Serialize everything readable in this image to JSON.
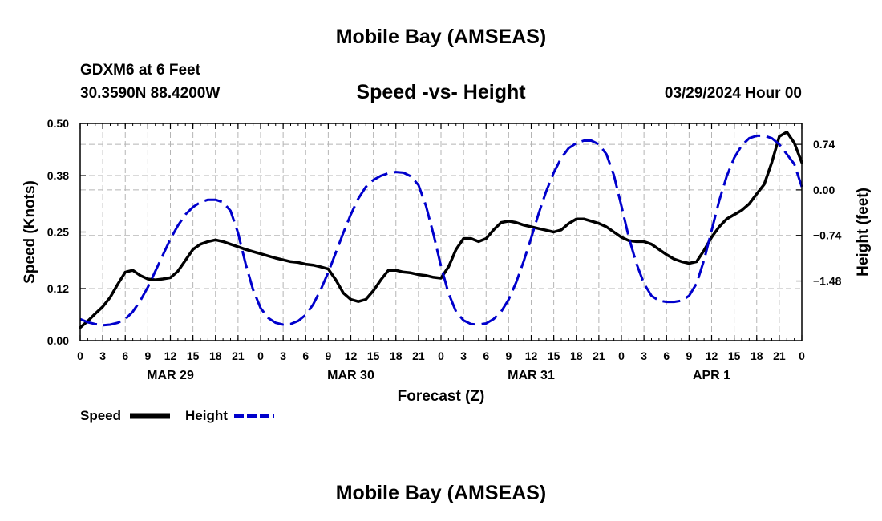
{
  "page": {
    "title": "Mobile Bay (AMSEAS)",
    "station": "GDXM6 at 6 Feet",
    "coordinates": "30.3590N  88.4200W",
    "subtitle": "Speed -vs- Height",
    "run_time": "03/29/2024 Hour 00",
    "footer_title": "Mobile Bay (AMSEAS)"
  },
  "chart_data": {
    "type": "line",
    "title": "Speed -vs- Height",
    "xlabel": "Forecast (Z)",
    "ylabel": "Speed (Knots)",
    "y2label": "Height (feet)",
    "xlim": [
      0,
      96
    ],
    "ylim": [
      0,
      0.5
    ],
    "y2lim": [
      -2.45,
      1.08
    ],
    "grid": true,
    "x_tick_labels": [
      "0",
      "3",
      "6",
      "9",
      "12",
      "15",
      "18",
      "21",
      "0",
      "3",
      "6",
      "9",
      "12",
      "15",
      "18",
      "21",
      "0",
      "3",
      "6",
      "9",
      "12",
      "15",
      "18",
      "21",
      "0",
      "3",
      "6",
      "9",
      "12",
      "15",
      "18",
      "21",
      "0"
    ],
    "day_labels": [
      {
        "label": "MAR 29",
        "hour": 12
      },
      {
        "label": "MAR 30",
        "hour": 36
      },
      {
        "label": "MAR 31",
        "hour": 60
      },
      {
        "label": "APR 1",
        "hour": 84
      }
    ],
    "y_ticks": [
      "0.00",
      "0.12",
      "0.25",
      "0.38",
      "0.50"
    ],
    "y2_ticks": [
      "−1.48",
      "−0.74",
      "0.00",
      "0.74"
    ],
    "legend_placement": "bottom-left",
    "series": [
      {
        "name": "Speed",
        "axis": "left",
        "color": "#000000",
        "style": "solid",
        "x": [
          0,
          1,
          2,
          3,
          4,
          5,
          6,
          7,
          8,
          9,
          10,
          11,
          12,
          13,
          14,
          15,
          16,
          17,
          18,
          19,
          20,
          21,
          22,
          23,
          24,
          25,
          26,
          27,
          28,
          29,
          30,
          31,
          32,
          33,
          34,
          35,
          36,
          37,
          38,
          39,
          40,
          41,
          42,
          43,
          44,
          45,
          46,
          47,
          48,
          49,
          50,
          51,
          52,
          53,
          54,
          55,
          56,
          57,
          58,
          59,
          60,
          61,
          62,
          63,
          64,
          65,
          66,
          67,
          68,
          69,
          70,
          71,
          72,
          73,
          74,
          75,
          76,
          77,
          78,
          79,
          80,
          81,
          82,
          83,
          84,
          85,
          86,
          87,
          88,
          89,
          90,
          91,
          92,
          93,
          94,
          95,
          96
        ],
        "values": [
          0.03,
          0.045,
          0.062,
          0.078,
          0.1,
          0.13,
          0.158,
          0.162,
          0.15,
          0.142,
          0.14,
          0.142,
          0.145,
          0.16,
          0.185,
          0.21,
          0.222,
          0.228,
          0.232,
          0.228,
          0.222,
          0.216,
          0.21,
          0.205,
          0.2,
          0.195,
          0.19,
          0.186,
          0.182,
          0.18,
          0.176,
          0.174,
          0.17,
          0.165,
          0.14,
          0.11,
          0.095,
          0.09,
          0.095,
          0.115,
          0.14,
          0.162,
          0.162,
          0.158,
          0.156,
          0.152,
          0.15,
          0.146,
          0.144,
          0.17,
          0.21,
          0.235,
          0.235,
          0.228,
          0.235,
          0.255,
          0.272,
          0.275,
          0.272,
          0.266,
          0.262,
          0.258,
          0.254,
          0.25,
          0.255,
          0.27,
          0.28,
          0.28,
          0.275,
          0.27,
          0.262,
          0.25,
          0.238,
          0.23,
          0.228,
          0.228,
          0.222,
          0.21,
          0.198,
          0.188,
          0.182,
          0.178,
          0.182,
          0.208,
          0.238,
          0.262,
          0.28,
          0.29,
          0.3,
          0.315,
          0.338,
          0.36,
          0.41,
          0.47,
          0.48,
          0.455,
          0.41
        ]
      },
      {
        "name": "Height",
        "axis": "right",
        "color": "#0000cc",
        "style": "dashed",
        "x": [
          0,
          1,
          2,
          3,
          4,
          5,
          6,
          7,
          8,
          9,
          10,
          11,
          12,
          13,
          14,
          15,
          16,
          17,
          18,
          19,
          20,
          21,
          22,
          23,
          24,
          25,
          26,
          27,
          28,
          29,
          30,
          31,
          32,
          33,
          34,
          35,
          36,
          37,
          38,
          39,
          40,
          41,
          42,
          43,
          44,
          45,
          46,
          47,
          48,
          49,
          50,
          51,
          52,
          53,
          54,
          55,
          56,
          57,
          58,
          59,
          60,
          61,
          62,
          63,
          64,
          65,
          66,
          67,
          68,
          69,
          70,
          71,
          72,
          73,
          74,
          75,
          76,
          77,
          78,
          79,
          80,
          81,
          82,
          83,
          84,
          85,
          86,
          87,
          88,
          89,
          90,
          91,
          92,
          93,
          94,
          95,
          96
        ],
        "values": [
          -2.1,
          -2.15,
          -2.18,
          -2.2,
          -2.19,
          -2.16,
          -2.1,
          -1.98,
          -1.8,
          -1.58,
          -1.32,
          -1.06,
          -0.8,
          -0.58,
          -0.4,
          -0.28,
          -0.2,
          -0.16,
          -0.16,
          -0.2,
          -0.34,
          -0.7,
          -1.2,
          -1.62,
          -1.92,
          -2.08,
          -2.16,
          -2.19,
          -2.18,
          -2.13,
          -2.03,
          -1.86,
          -1.62,
          -1.34,
          -1.02,
          -0.7,
          -0.4,
          -0.14,
          0.05,
          0.16,
          0.23,
          0.27,
          0.29,
          0.28,
          0.22,
          0.08,
          -0.26,
          -0.72,
          -1.24,
          -1.68,
          -1.98,
          -2.12,
          -2.18,
          -2.19,
          -2.17,
          -2.1,
          -1.98,
          -1.78,
          -1.5,
          -1.16,
          -0.78,
          -0.38,
          -0.02,
          0.28,
          0.52,
          0.68,
          0.76,
          0.8,
          0.8,
          0.74,
          0.58,
          0.24,
          -0.26,
          -0.78,
          -1.2,
          -1.52,
          -1.72,
          -1.8,
          -1.82,
          -1.82,
          -1.8,
          -1.72,
          -1.52,
          -1.14,
          -0.66,
          -0.18,
          0.22,
          0.52,
          0.72,
          0.84,
          0.88,
          0.88,
          0.84,
          0.74,
          0.58,
          0.42,
          0.05
        ]
      }
    ]
  },
  "legend": {
    "speed_label": "Speed",
    "height_label": "Height"
  }
}
